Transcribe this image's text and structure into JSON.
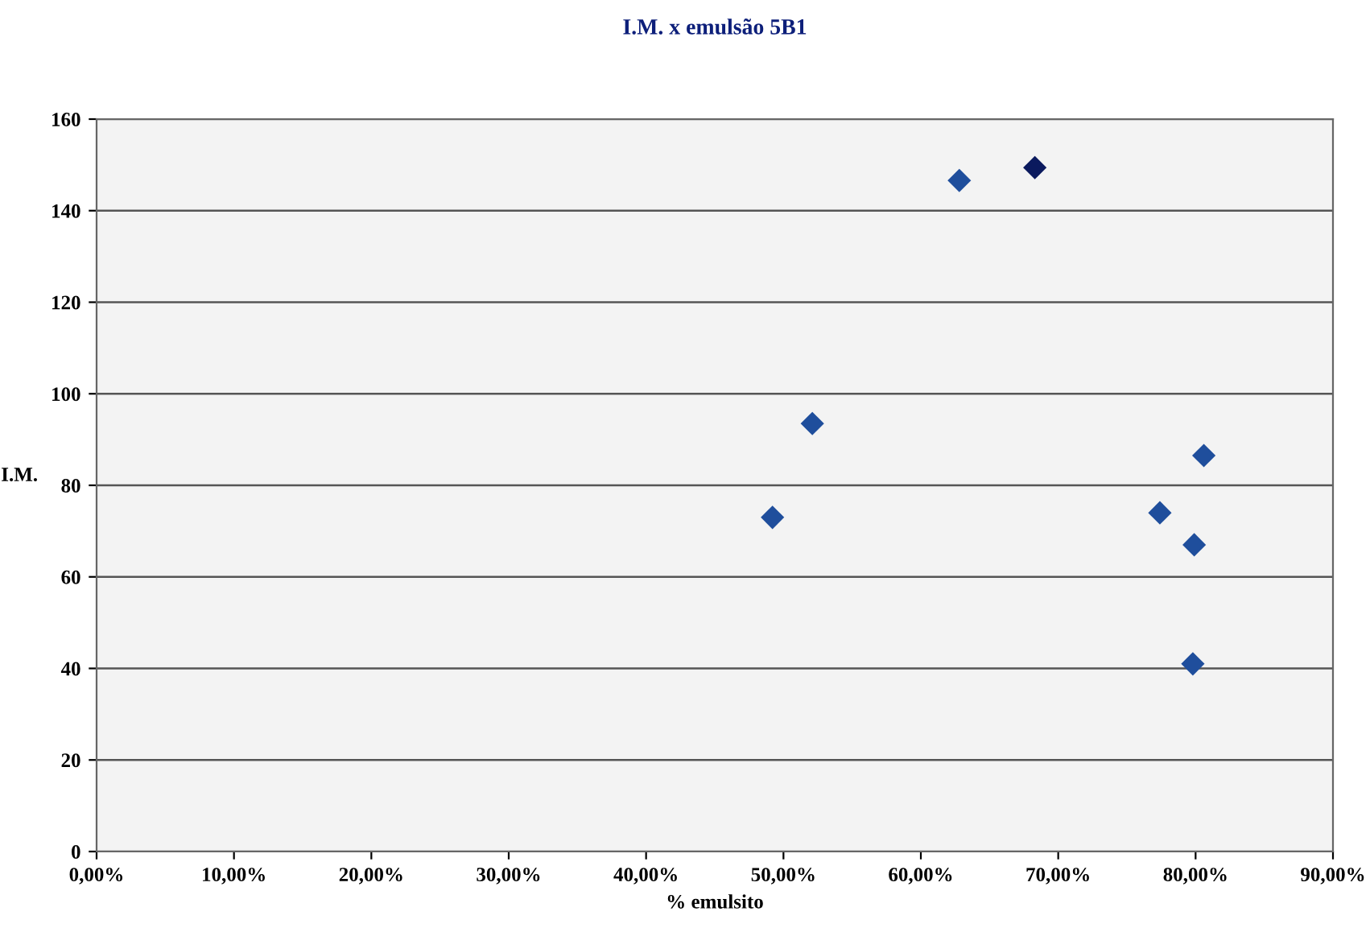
{
  "chart_data": {
    "type": "scatter",
    "title": "I.M. x emulsão 5B1",
    "xlabel": "% emulsito",
    "ylabel": "I.M.",
    "x": [
      49.2,
      52.1,
      62.8,
      68.3,
      77.4,
      79.8,
      79.9,
      80.6
    ],
    "values": [
      73,
      93.5,
      146.6,
      149.4,
      74,
      41,
      67,
      86.5
    ],
    "colors": [
      "#1f4e9c",
      "#1f4e9c",
      "#1f4e9c",
      "#0b1a5e",
      "#1f4e9c",
      "#1f4e9c",
      "#1f4e9c",
      "#1f4e9c"
    ],
    "marker": "diamond",
    "grid": "y",
    "xlim": [
      0,
      90
    ],
    "ylim": [
      0,
      160
    ],
    "xticks": [
      {
        "value": 0,
        "label": "0,00%"
      },
      {
        "value": 10,
        "label": "10,00%"
      },
      {
        "value": 20,
        "label": "20,00%"
      },
      {
        "value": 30,
        "label": "30,00%"
      },
      {
        "value": 40,
        "label": "40,00%"
      },
      {
        "value": 50,
        "label": "50,00%"
      },
      {
        "value": 60,
        "label": "60,00%"
      },
      {
        "value": 70,
        "label": "70,00%"
      },
      {
        "value": 80,
        "label": "80,00%"
      },
      {
        "value": 90,
        "label": "90,00%"
      }
    ],
    "yticks": [
      0,
      20,
      40,
      60,
      80,
      100,
      120,
      140,
      160
    ]
  }
}
